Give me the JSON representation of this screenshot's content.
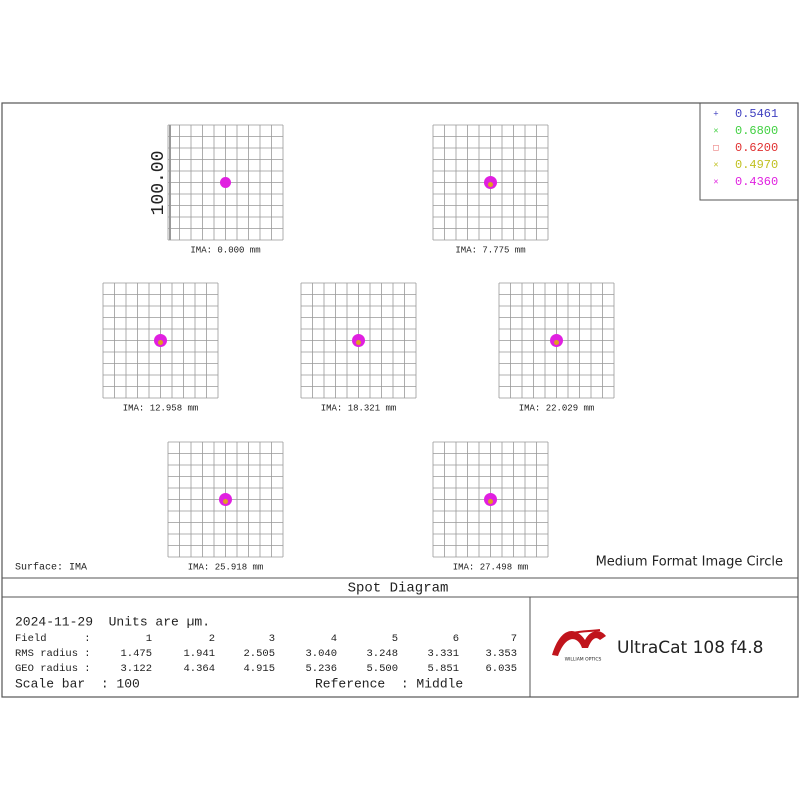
{
  "plot": {
    "scale_label": "100.00",
    "surface": "Surface: IMA",
    "caption": "Medium Format Image Circle",
    "fields": [
      "IMA: 0.000 mm",
      "IMA: 7.775 mm",
      "IMA: 12.958 mm",
      "IMA: 18.321 mm",
      "IMA: 22.029 mm",
      "IMA: 25.918 mm",
      "IMA: 27.498 mm"
    ]
  },
  "legend": [
    {
      "symbol": "+",
      "label": "0.5461",
      "color": "#4040c0"
    },
    {
      "symbol": "×",
      "label": "0.6800",
      "color": "#40d040"
    },
    {
      "symbol": "□",
      "label": "0.6200",
      "color": "#e03030"
    },
    {
      "symbol": "×",
      "label": "0.4970",
      "color": "#c0c020"
    },
    {
      "symbol": "×",
      "label": "0.4360",
      "color": "#e020e0"
    }
  ],
  "title": "Spot Diagram",
  "info": {
    "date_units": "2024-11-29  Units are µm.",
    "rows": [
      [
        "Field      :",
        "1",
        "2",
        "3",
        "4",
        "5",
        "6",
        "7"
      ],
      [
        "RMS radius :",
        "1.475",
        "1.941",
        "2.505",
        "3.040",
        "3.248",
        "3.331",
        "3.353"
      ],
      [
        "GEO radius :",
        "3.122",
        "4.364",
        "4.915",
        "5.236",
        "5.500",
        "5.851",
        "6.035"
      ]
    ],
    "scale_bar": "Scale bar  : 100",
    "reference": "Reference  : Middle"
  },
  "logo": {
    "brand": "WILLIAM OPTICS",
    "product": "UltraCat 108 f4.8"
  }
}
